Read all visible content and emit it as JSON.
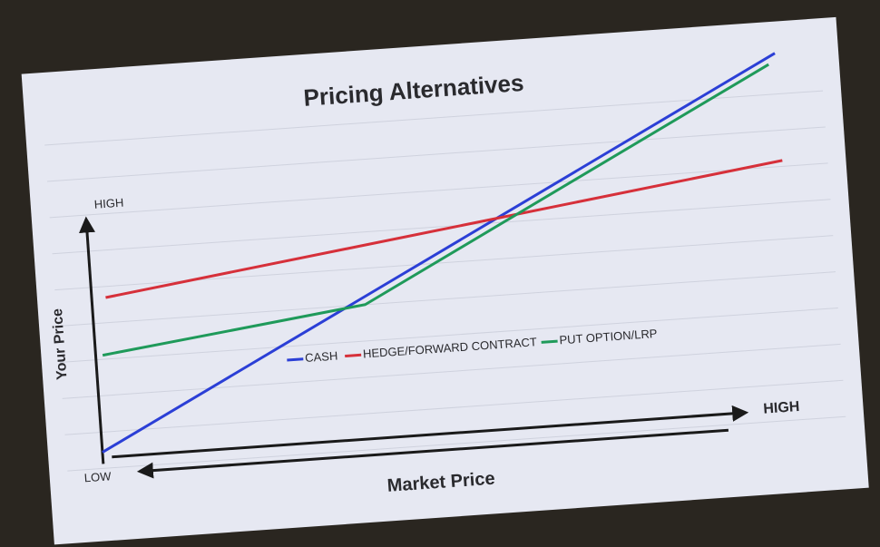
{
  "chart_data": {
    "type": "line",
    "title": "Pricing Alternatives",
    "y_label": "Your Price",
    "x_label": "Market Price",
    "y_high_label": "HIGH",
    "y_low_label": "LOW",
    "x_high_label": "HIGH",
    "xlim": [
      0,
      100
    ],
    "ylim": [
      0,
      100
    ],
    "legend": "center",
    "series": [
      {
        "name": "CASH",
        "color": "#2b3fd6",
        "x": [
          0,
          100
        ],
        "values": [
          2,
          100
        ]
      },
      {
        "name": "HEDGE/FORWARD CONTRACT",
        "color": "#d6303a",
        "x": [
          2,
          100
        ],
        "values": [
          45,
          70
        ]
      },
      {
        "name": "PUT OPTION/LRP",
        "color": "#1f9a5a",
        "x": [
          1,
          39,
          99
        ],
        "values": [
          29,
          38,
          97
        ]
      }
    ]
  }
}
